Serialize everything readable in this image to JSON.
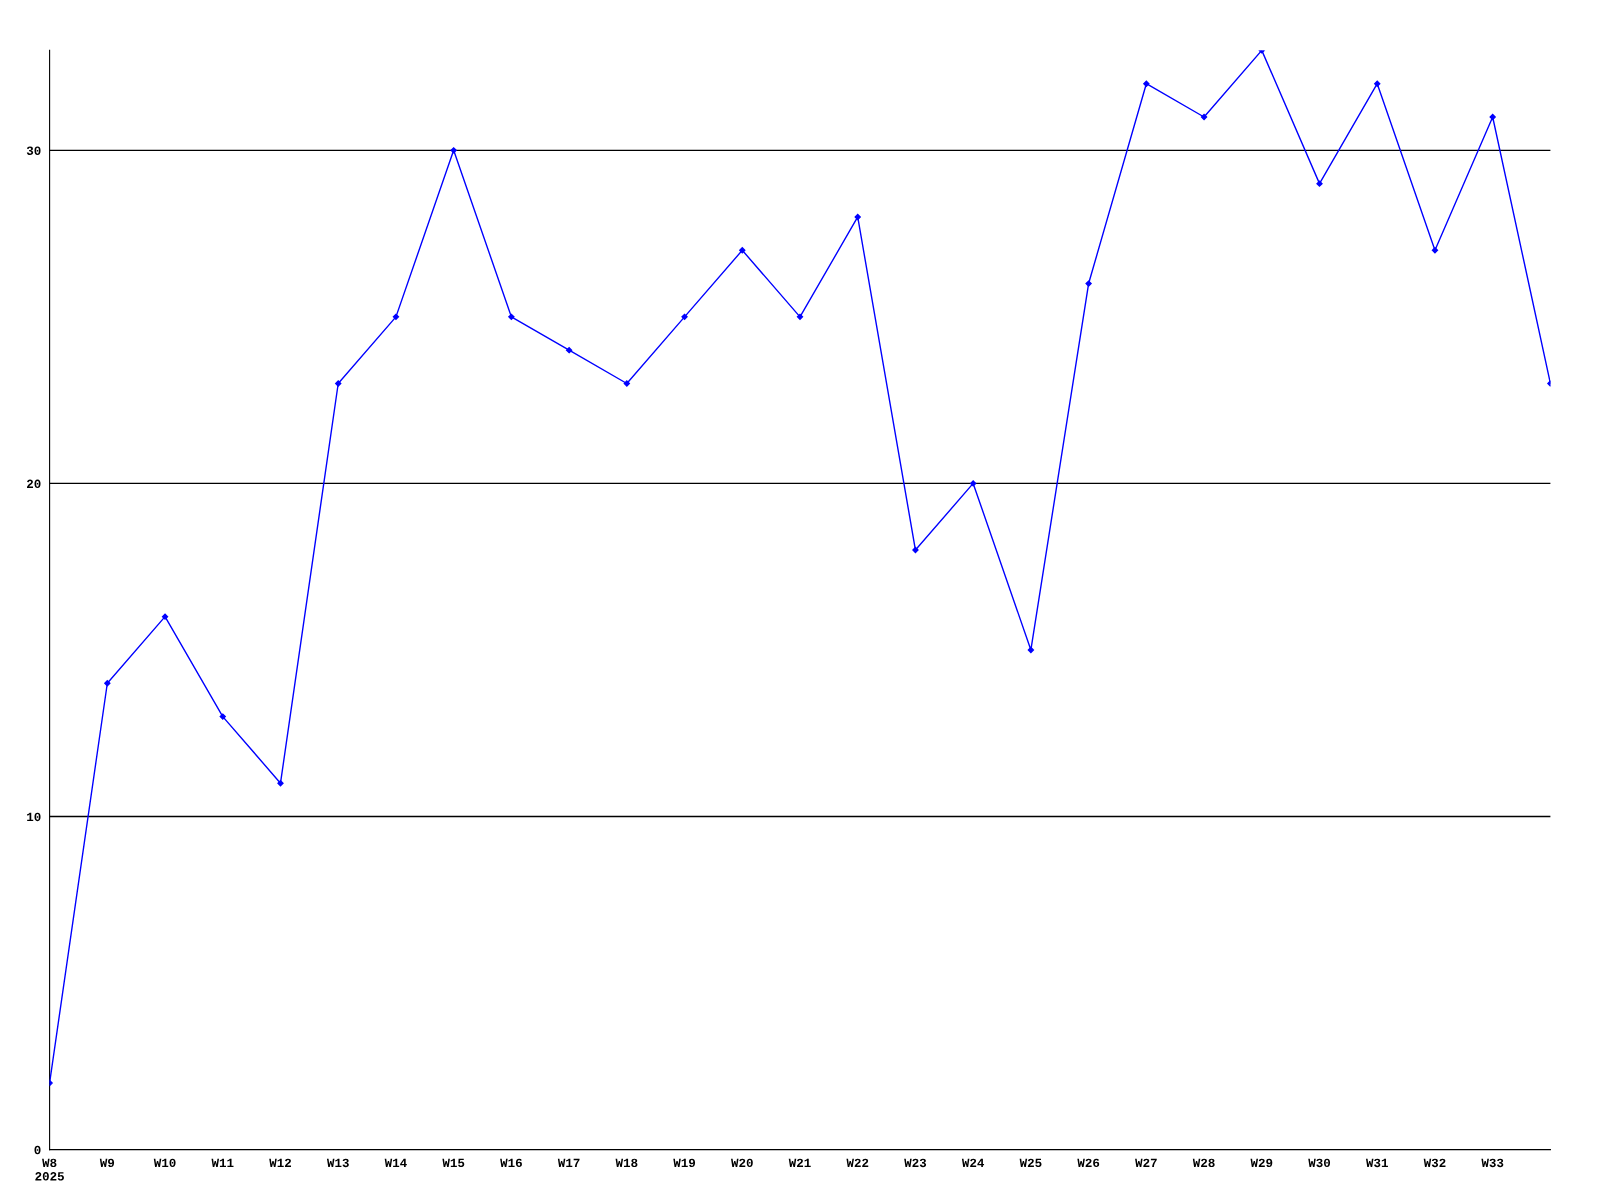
{
  "chart_data": {
    "type": "line",
    "categories": [
      "W8\n2025",
      "W9",
      "W10",
      "W11",
      "W12",
      "W13",
      "W14",
      "W15",
      "W16",
      "W17",
      "W18",
      "W19",
      "W20",
      "W21",
      "W22",
      "W23",
      "W24",
      "W25",
      "W26",
      "W27",
      "W28",
      "W29",
      "W30",
      "W31",
      "W32",
      "W33",
      null
    ],
    "series": [
      {
        "color": "#0000ff",
        "values": [
          2,
          14,
          16,
          13,
          11,
          23,
          25,
          30,
          25,
          24,
          23,
          25,
          27,
          25,
          28,
          18,
          20,
          15,
          26,
          32,
          31,
          33,
          29,
          32,
          27,
          31,
          23
        ]
      }
    ],
    "ylim": [
      0,
      33
    ],
    "yticks": [
      0,
      10,
      20,
      30
    ],
    "grid": "y",
    "marker": "diamond",
    "line_style": "solid"
  }
}
